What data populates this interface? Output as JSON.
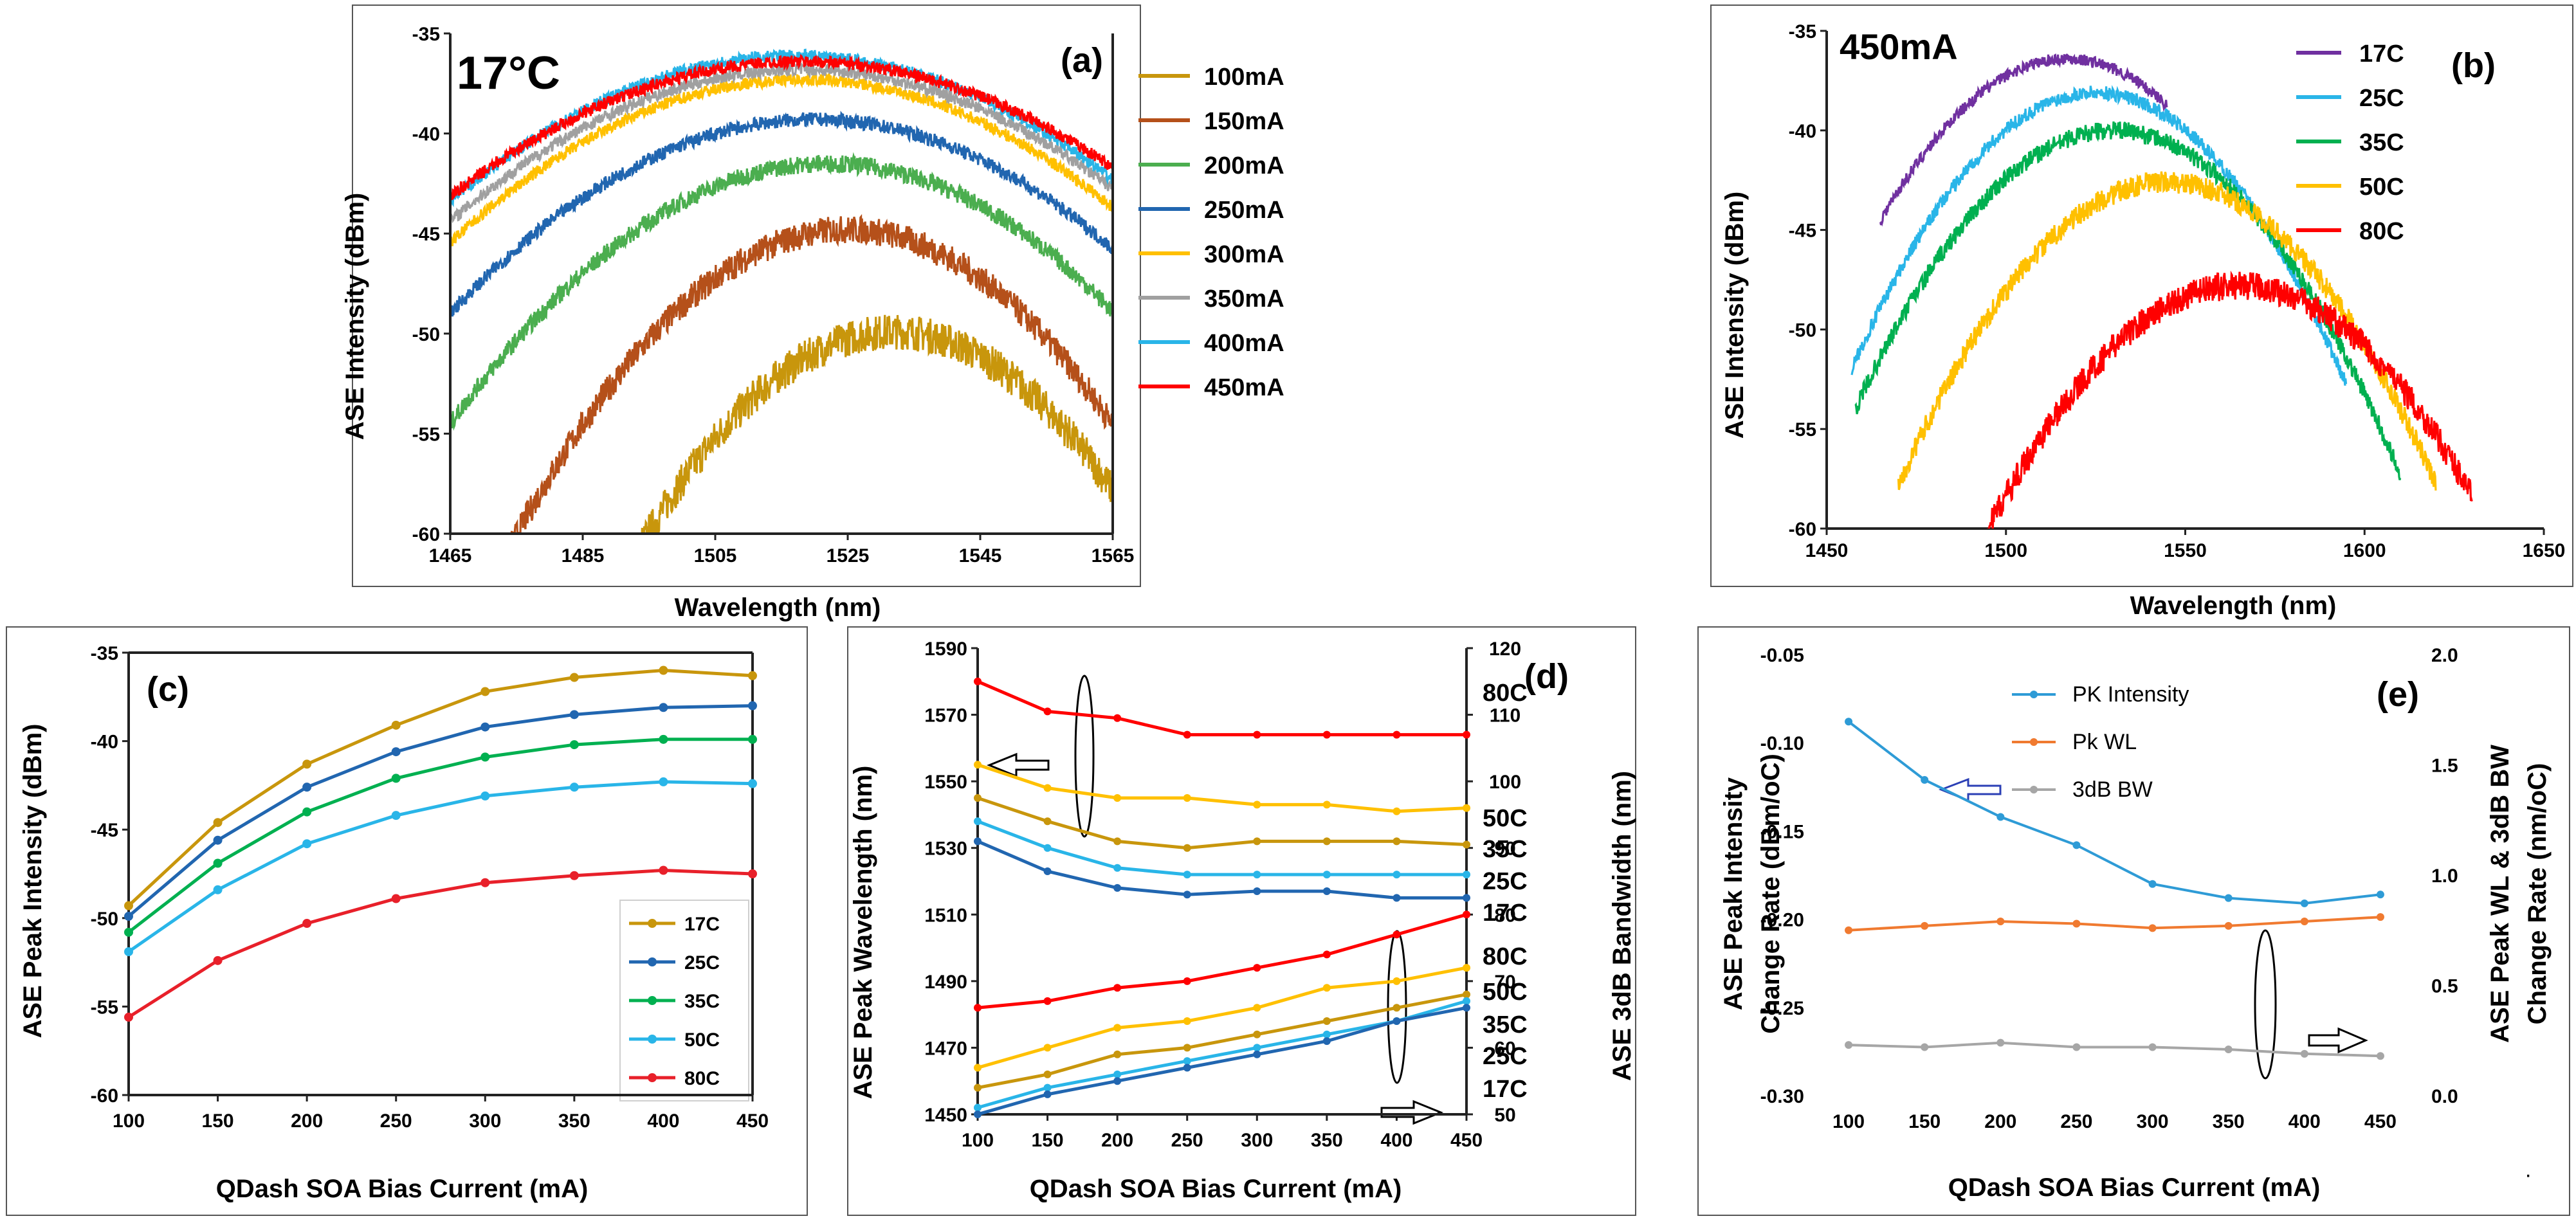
{
  "chart_data": [
    {
      "id": "a",
      "type": "line",
      "panel_label": "(a)",
      "inset_label": "17°C",
      "xlabel": "Wavelength (nm)",
      "ylabel": "ASE Intensity (dBm)",
      "xlim": [
        1465,
        1565
      ],
      "ylim": [
        -60,
        -35
      ],
      "xticks": [
        1465,
        1485,
        1505,
        1525,
        1545,
        1565
      ],
      "yticks": [
        -35,
        -40,
        -45,
        -50,
        -55,
        -60
      ],
      "legend_position": "right-outside",
      "series": [
        {
          "name": "100mA",
          "color": "#C8960C",
          "peak_x": 1532,
          "peak_y": -49.9,
          "curv": 0.0073,
          "noise": 0.9
        },
        {
          "name": "150mA",
          "color": "#B5501A",
          "peak_x": 1525,
          "peak_y": -44.8,
          "curv": 0.0061,
          "noise": 0.7
        },
        {
          "name": "200mA",
          "color": "#4BAE4F",
          "peak_x": 1522,
          "peak_y": -41.5,
          "curv": 0.004,
          "noise": 0.45
        },
        {
          "name": "250mA",
          "color": "#2166B0",
          "peak_x": 1520,
          "peak_y": -39.3,
          "curv": 0.0032,
          "noise": 0.35
        },
        {
          "name": "300mA",
          "color": "#FFC000",
          "peak_x": 1518,
          "peak_y": -37.3,
          "curv": 0.0029,
          "noise": 0.3
        },
        {
          "name": "350mA",
          "color": "#A0A0A0",
          "peak_x": 1518,
          "peak_y": -36.8,
          "curv": 0.0027,
          "noise": 0.3
        },
        {
          "name": "400mA",
          "color": "#29B5E8",
          "peak_x": 1517,
          "peak_y": -36.1,
          "curv": 0.0027,
          "noise": 0.3
        },
        {
          "name": "450mA",
          "color": "#FF0000",
          "peak_x": 1518,
          "peak_y": -36.4,
          "curv": 0.0024,
          "noise": 0.3
        }
      ]
    },
    {
      "id": "b",
      "type": "line",
      "panel_label": "(b)",
      "inset_label": "450mA",
      "xlabel": "Wavelength (nm)",
      "ylabel": "ASE Intensity (dBm)",
      "xlim": [
        1450,
        1650
      ],
      "ylim": [
        -60,
        -35
      ],
      "xticks": [
        1450,
        1500,
        1550,
        1600,
        1650
      ],
      "yticks": [
        -35,
        -40,
        -45,
        -50,
        -55,
        -60
      ],
      "legend_position": "top-right",
      "series": [
        {
          "name": "17C",
          "color": "#7030A0",
          "peak_x": 1517,
          "peak_y": -36.4,
          "curv": 0.003,
          "x_start": 1465,
          "x_end": 1545,
          "noise": 0.3
        },
        {
          "name": "25C",
          "color": "#29B5E8",
          "peak_x": 1525,
          "peak_y": -38.1,
          "curv": 0.003,
          "x_start": 1457,
          "x_end": 1595,
          "noise": 0.35
        },
        {
          "name": "35C",
          "color": "#00B050",
          "peak_x": 1530,
          "peak_y": -40.0,
          "curv": 0.0027,
          "x_start": 1458,
          "x_end": 1610,
          "noise": 0.45
        },
        {
          "name": "50C",
          "color": "#FFC000",
          "peak_x": 1545,
          "peak_y": -42.6,
          "curv": 0.0027,
          "x_start": 1470,
          "x_end": 1620,
          "noise": 0.55
        },
        {
          "name": "80C",
          "color": "#FF0000",
          "peak_x": 1565,
          "peak_y": -47.8,
          "curv": 0.0025,
          "x_start": 1478,
          "x_end": 1630,
          "noise": 0.7
        }
      ]
    },
    {
      "id": "c",
      "type": "line",
      "panel_label": "(c)",
      "xlabel": "QDash SOA Bias Current (mA)",
      "ylabel": "ASE Peak Intensity (dBm)",
      "xlim": [
        100,
        450
      ],
      "ylim": [
        -60,
        -35
      ],
      "xticks": [
        100,
        150,
        200,
        250,
        300,
        350,
        400,
        450
      ],
      "yticks": [
        -35,
        -40,
        -45,
        -50,
        -55,
        -60
      ],
      "x": [
        100,
        150,
        200,
        250,
        300,
        350,
        400,
        450
      ],
      "legend_position": "bottom-right",
      "series": [
        {
          "name": "17C",
          "color": "#C8960C",
          "values": [
            -49.3,
            -44.6,
            -41.3,
            -39.1,
            -37.2,
            -36.4,
            -36.0,
            -36.3
          ]
        },
        {
          "name": "25C",
          "color": "#2166B0",
          "values": [
            -49.9,
            -45.6,
            -42.6,
            -40.6,
            -39.2,
            -38.5,
            -38.1,
            -38.0
          ]
        },
        {
          "name": "35C",
          "color": "#00B050",
          "values": [
            -50.8,
            -46.9,
            -44.0,
            -42.1,
            -40.9,
            -40.2,
            -39.9,
            -39.9
          ]
        },
        {
          "name": "50C",
          "color": "#29B5E8",
          "values": [
            -51.9,
            -48.4,
            -45.8,
            -44.2,
            -43.1,
            -42.6,
            -42.3,
            -42.4
          ]
        },
        {
          "name": "80C",
          "color": "#E8202A",
          "values": [
            -55.6,
            -52.4,
            -50.3,
            -48.9,
            -48.0,
            -47.6,
            -47.3,
            -47.5
          ]
        }
      ]
    },
    {
      "id": "d",
      "type": "line",
      "panel_label": "(d)",
      "xlabel": "QDash SOA Bias Current (mA)",
      "ylabel": "ASE Peak Wavelength (nm)",
      "ylabel_right": "ASE 3dB Bandwidth (nm)",
      "xlim": [
        100,
        450
      ],
      "ylim": [
        1450,
        1590
      ],
      "ylim_right": [
        50,
        120
      ],
      "xticks": [
        100,
        150,
        200,
        250,
        300,
        350,
        400,
        450
      ],
      "yticks": [
        1450,
        1470,
        1490,
        1510,
        1530,
        1550,
        1570,
        1590
      ],
      "yticks_right": [
        50,
        60,
        70,
        80,
        90,
        100,
        110,
        120
      ],
      "x": [
        100,
        150,
        200,
        250,
        300,
        350,
        400,
        450
      ],
      "series_left": [
        {
          "name": "80C",
          "color": "#FF0000",
          "values": [
            1580,
            1571,
            1569,
            1564,
            1564,
            1564,
            1564,
            1564
          ]
        },
        {
          "name": "50C",
          "color": "#FFC000",
          "values": [
            1555,
            1548,
            1545,
            1545,
            1543,
            1543,
            1541,
            1542
          ]
        },
        {
          "name": "35C",
          "color": "#C8960C",
          "values": [
            1545,
            1538,
            1532,
            1530,
            1532,
            1532,
            1532,
            1531
          ]
        },
        {
          "name": "25C",
          "color": "#29B5E8",
          "values": [
            1538,
            1530,
            1524,
            1522,
            1522,
            1522,
            1522,
            1522
          ]
        },
        {
          "name": "17C",
          "color": "#2166B0",
          "values": [
            1532,
            1523,
            1518,
            1516,
            1517,
            1517,
            1515,
            1515
          ]
        }
      ],
      "series_right": [
        {
          "name": "80C",
          "color": "#FF0000",
          "values": [
            66,
            67,
            69,
            70,
            72,
            74,
            77,
            80
          ]
        },
        {
          "name": "50C",
          "color": "#FFC000",
          "values": [
            57,
            60,
            63,
            64,
            66,
            69,
            70,
            72
          ]
        },
        {
          "name": "35C",
          "color": "#C8960C",
          "values": [
            54,
            56,
            59,
            60,
            62,
            64,
            66,
            68
          ]
        },
        {
          "name": "25C",
          "color": "#29B5E8",
          "values": [
            51,
            54,
            56,
            58,
            60,
            62,
            64,
            67
          ]
        },
        {
          "name": "17C",
          "color": "#2166B0",
          "values": [
            50,
            53,
            55,
            57,
            59,
            61,
            64,
            66
          ]
        }
      ],
      "annotations_left": [
        "80C",
        "50C",
        "35C",
        "25C",
        "17C"
      ],
      "annotations_right": [
        "80C",
        "50C",
        "35C",
        "25C",
        "17C"
      ]
    },
    {
      "id": "e",
      "type": "line",
      "panel_label": "(e)",
      "xlabel": "QDash SOA Bias Current (mA)",
      "ylabel_line1": "ASE Peak Intensity",
      "ylabel_line2": "Change Rate (dBm/oC)",
      "ylabel_right_line1": "ASE Peak WL & 3dB BW",
      "ylabel_right_line2": "Change Rate (nm/oC)",
      "xlim": [
        75,
        475
      ],
      "ylim": [
        -0.3,
        -0.05
      ],
      "ylim_right": [
        0.0,
        2.0
      ],
      "xticks": [
        100,
        150,
        200,
        250,
        300,
        350,
        400,
        450
      ],
      "yticks": [
        "-0.05",
        "-0.10",
        "-0.15",
        "-0.20",
        "-0.25",
        "-0.30"
      ],
      "yticks_right": [
        "2.0",
        "1.5",
        "1.0",
        "0.5",
        "0.0"
      ],
      "x": [
        100,
        150,
        200,
        250,
        300,
        350,
        400,
        450
      ],
      "legend_position": "top-center",
      "series": [
        {
          "name": "PK Intensity",
          "color": "#2E9BD6",
          "axis": "left",
          "values": [
            -0.088,
            -0.121,
            -0.142,
            -0.158,
            -0.18,
            -0.188,
            -0.191,
            -0.186
          ]
        },
        {
          "name": "Pk WL",
          "color": "#F07A30",
          "axis": "right",
          "values": [
            0.75,
            0.77,
            0.79,
            0.78,
            0.76,
            0.77,
            0.79,
            0.81
          ]
        },
        {
          "name": "3dB BW",
          "color": "#A6A6A6",
          "axis": "right",
          "values": [
            0.23,
            0.22,
            0.24,
            0.22,
            0.22,
            0.21,
            0.19,
            0.18
          ]
        }
      ]
    }
  ]
}
